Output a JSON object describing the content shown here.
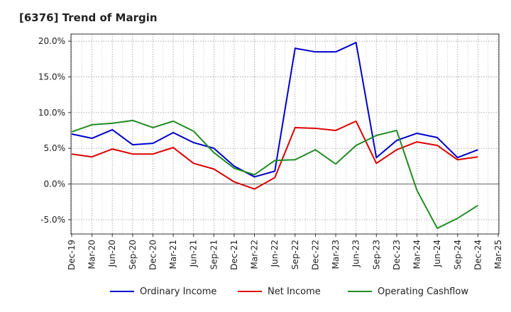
{
  "chart_data": {
    "type": "line",
    "title": "[6376]  Trend of Margin",
    "xlabel": "",
    "ylabel": "",
    "categories": [
      "Dec-19",
      "Mar-20",
      "Jun-20",
      "Sep-20",
      "Dec-20",
      "Mar-21",
      "Jun-21",
      "Sep-21",
      "Dec-21",
      "Mar-22",
      "Jun-22",
      "Sep-22",
      "Dec-22",
      "Mar-23",
      "Jun-23",
      "Sep-23",
      "Dec-23",
      "Mar-24",
      "Jun-24",
      "Sep-24",
      "Dec-24",
      "Mar-25"
    ],
    "yticks": [
      "-5.0%",
      "0.0%",
      "5.0%",
      "10.0%",
      "15.0%",
      "20.0%"
    ],
    "ylim": [
      -7,
      21
    ],
    "grid": true,
    "legend_position": "bottom",
    "series": [
      {
        "name": "Ordinary Income",
        "color": "#0000cc",
        "values": [
          7.0,
          6.4,
          7.6,
          5.5,
          5.7,
          7.2,
          5.8,
          5.0,
          2.5,
          1.0,
          1.8,
          19.0,
          18.5,
          18.5,
          19.8,
          3.7,
          6.1,
          7.1,
          6.5,
          3.7,
          4.8,
          null
        ]
      },
      {
        "name": "Net Income",
        "color": "#dd0000",
        "values": [
          4.2,
          3.8,
          4.9,
          4.2,
          4.2,
          5.1,
          2.9,
          2.1,
          0.3,
          -0.7,
          0.9,
          7.9,
          7.8,
          7.5,
          8.8,
          2.9,
          4.8,
          5.9,
          5.4,
          3.4,
          3.8,
          null
        ]
      },
      {
        "name": "Operating Cashflow",
        "color": "#228b22",
        "values": [
          7.3,
          8.3,
          8.5,
          8.9,
          7.9,
          8.8,
          7.4,
          4.4,
          2.2,
          1.3,
          3.3,
          3.4,
          4.8,
          2.8,
          5.4,
          6.8,
          7.5,
          -0.9,
          -6.2,
          -4.8,
          -3.0,
          null
        ]
      }
    ]
  }
}
